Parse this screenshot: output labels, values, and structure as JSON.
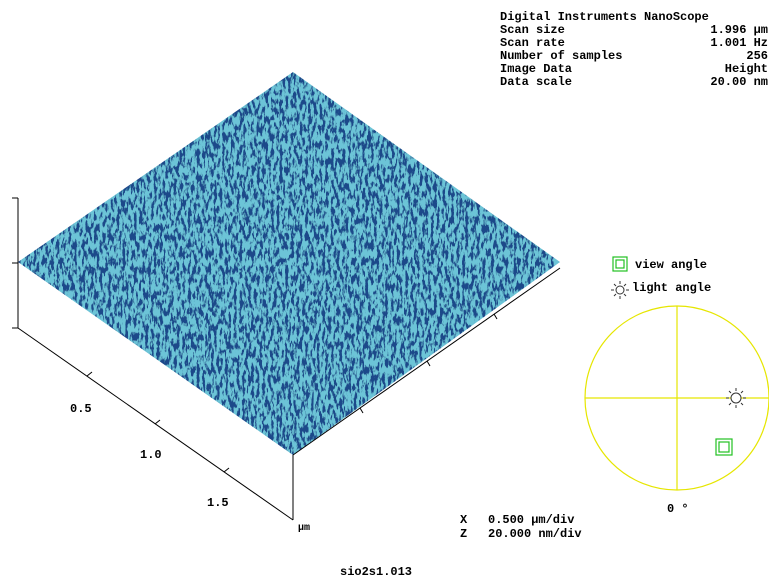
{
  "header": {
    "title": "Digital Instruments NanoScope",
    "rows": [
      [
        "Scan size",
        "1.996 µm"
      ],
      [
        "Scan rate",
        "1.001 Hz"
      ],
      [
        "Number of samples",
        "256"
      ],
      [
        "Image Data",
        "Height"
      ],
      [
        "Data scale",
        "20.00 nm"
      ]
    ]
  },
  "legend": {
    "view": "view angle",
    "light": "light angle"
  },
  "axis": {
    "labels": [
      "0.5",
      "1.0",
      "1.5"
    ],
    "unit": "µm"
  },
  "scale": {
    "x_key": "X",
    "x_value": "0.500 µm/div",
    "z_key": "Z",
    "z_value": "20.000 nm/div"
  },
  "angle": "0 °",
  "filename": "sio2s1.013"
}
